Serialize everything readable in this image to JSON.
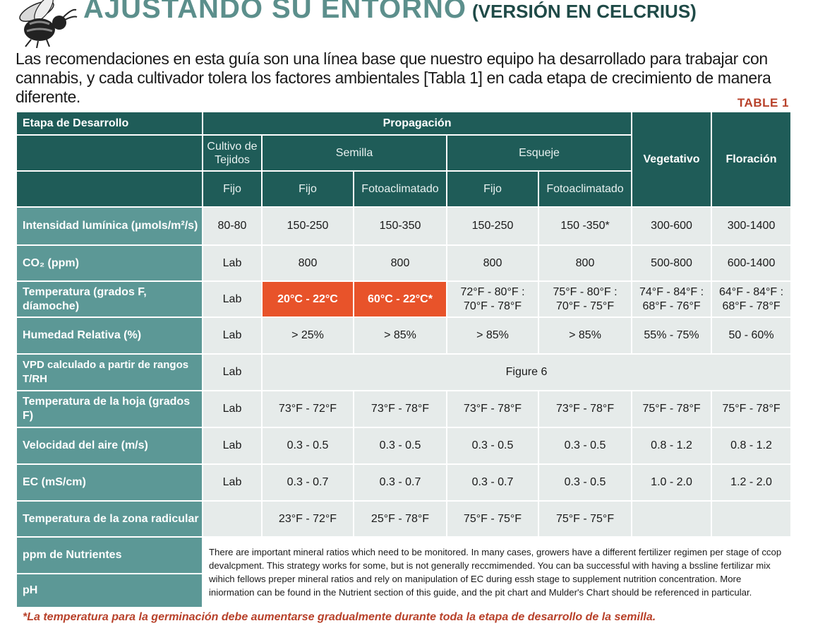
{
  "header": {
    "title_main": "AJUSTANDO SU ENTORNO",
    "title_sub": "(VERSIÓN EN CELCRIUS)"
  },
  "intro_text": "Las recomendaciones en esta guía son una línea base que nuestro equipo ha desarrollado para trabajar con cannabis, y cada cultivador tolera los factores ambientales [Tabla 1] en cada etapa de crecimiento de manera diferente.",
  "table_label": "TABLE 1",
  "table": {
    "stage_header": "Etapa de Desarrollo",
    "propagation_header": "Propagación",
    "tissue_header": "Cultivo de Tejidos",
    "seed_header": "Semilla",
    "cutting_header": "Esqueje",
    "vegetative_header": "Vegetativo",
    "flowering_header": "Floración",
    "sub_headers": [
      "Fijo",
      "Fijo",
      "Fotoaclimatado",
      "Fijo",
      "Fotoaclimatado"
    ],
    "rows": [
      {
        "label": "Intensidad lumínica (µmols/m²/s)",
        "values": [
          "80-80",
          "150-250",
          "150-350",
          "150-250",
          "150 -350*",
          "300-600",
          "300-1400"
        ]
      },
      {
        "label": "CO₂ (ppm)",
        "values": [
          "Lab",
          "800",
          "800",
          "800",
          "800",
          "500-800",
          "600-1400"
        ]
      },
      {
        "label": "Temperatura (grados F, díamoche)",
        "values": [
          "Lab",
          "20°C - 22°C",
          "60°C - 22°C*",
          "72°F - 80°F : 70°F - 78°F",
          "75°F - 80°F : 70°F - 75°F",
          "74°F - 84°F : 68°F - 76°F",
          "64°F - 84°F : 68°F - 78°F"
        ]
      },
      {
        "label": "Humedad Relativa (%)",
        "values": [
          "Lab",
          "> 25%",
          "> 85%",
          "> 85%",
          "> 85%",
          "55% - 75%",
          "50 - 60%"
        ]
      },
      {
        "label": "VPD calculado a partir de rangos T/RH",
        "lab": "Lab",
        "span_text": "Figure 6"
      },
      {
        "label": "Temperatura de la hoja (grados F)",
        "values": [
          "Lab",
          "73°F - 72°F",
          "73°F - 78°F",
          "73°F - 78°F",
          "73°F - 78°F",
          "75°F - 78°F",
          "75°F - 78°F"
        ]
      },
      {
        "label": "Velocidad del aire (m/s)",
        "values": [
          "Lab",
          "0.3 - 0.5",
          "0.3 - 0.5",
          "0.3 - 0.5",
          "0.3 - 0.5",
          "0.8 - 1.2",
          "0.8 - 1.2"
        ]
      },
      {
        "label": "EC (mS/cm)",
        "values": [
          "Lab",
          "0.3 - 0.7",
          "0.3 - 0.7",
          "0.3 - 0.7",
          "0.3 - 0.5",
          "1.0 - 2.0",
          "1.2 - 2.0"
        ]
      },
      {
        "label": "Temperatura de la zona radicular",
        "values": [
          "",
          "23°F - 72°F",
          "25°F - 78°F",
          "75°F - 75°F",
          "75°F - 75°F",
          "",
          ""
        ]
      }
    ],
    "nutrients_label": "ppm de Nutrientes",
    "ph_label": "pH",
    "note": "There are important mineral ratios which need to be monitored. In many cases, growers have a different fertilizer regimen per stage of ccop devalcpment. This strategy works for some, but is not generally reccmimended. You can ba successful with having a bssline fertilizar mix wihich fellows preper mineral ratios and rely on manipulation of EC during essh stage to supplement nutrition concentration. More iniormation can be found in the Nutrient section of this guide, and the pit chart and Mulder's Chart should be referenced in particular."
  },
  "footnote": "*La temperatura para la germinación debe aumentarse gradualmente durante toda la etapa de desarrollo de la semilla.",
  "colors": {
    "header_dark": "#1f5c58",
    "row_label": "#5c9896",
    "cell_bg": "#e6ebea",
    "highlight": "#e8532a",
    "accent_text": "#b8412a",
    "title": "#5c8f8c"
  }
}
